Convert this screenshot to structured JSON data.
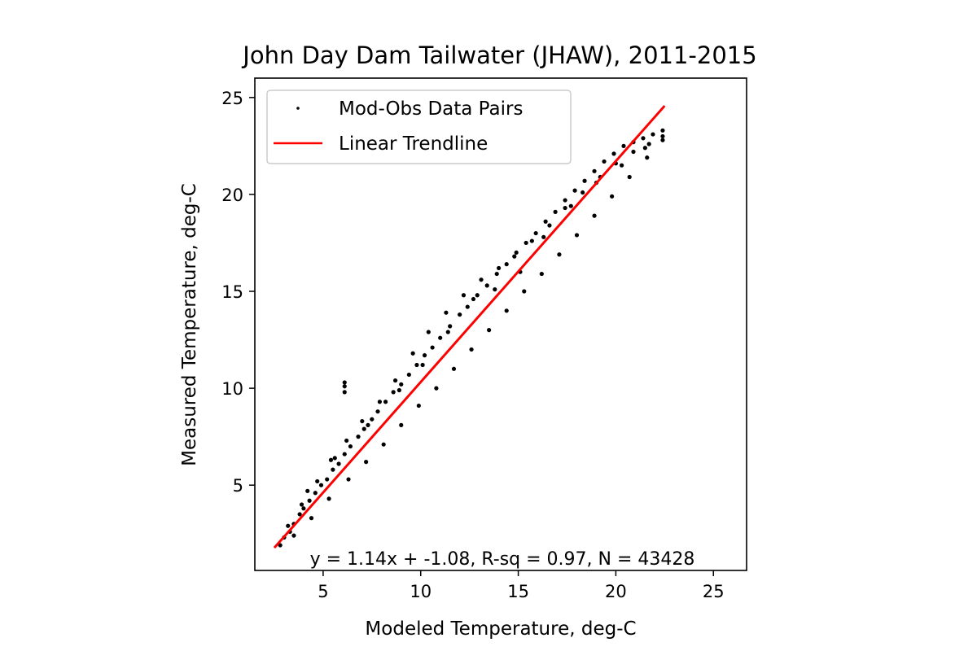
{
  "chart_data": {
    "type": "scatter",
    "title": "John Day Dam Tailwater (JHAW), 2011-2015",
    "xlabel": "Modeled Temperature, deg-C",
    "ylabel": "Measured Temperature, deg-C",
    "xlim": [
      1.5,
      26.7
    ],
    "ylim": [
      0.6,
      26.0
    ],
    "xticks": [
      5,
      10,
      15,
      20,
      25
    ],
    "yticks": [
      5,
      10,
      15,
      20,
      25
    ],
    "grid": false,
    "legend_position": "upper-left",
    "annotation": "y = 1.14x + -1.08, R-sq = 0.97, N = 43428",
    "colors": {
      "points": "#000000",
      "trendline": "#ff0000"
    },
    "series": [
      {
        "name": "Mod-Obs Data Pairs",
        "kind": "scatter",
        "color": "#000000",
        "marker": "point",
        "x": [
          2.8,
          3.0,
          3.3,
          3.5,
          3.8,
          4.0,
          4.3,
          4.6,
          4.9,
          5.2,
          5.5,
          5.8,
          6.1,
          6.4,
          6.8,
          7.1,
          7.5,
          7.8,
          8.2,
          8.6,
          9.0,
          9.4,
          9.8,
          10.2,
          10.6,
          11.0,
          11.5,
          12.0,
          12.4,
          12.9,
          13.4,
          13.9,
          14.4,
          14.9,
          15.4,
          15.9,
          16.4,
          16.9,
          17.4,
          17.9,
          18.4,
          18.9,
          19.4,
          19.9,
          20.4,
          20.9,
          21.4,
          21.9,
          22.4,
          3.2,
          3.9,
          4.7,
          5.4,
          6.2,
          7.0,
          7.9,
          8.7,
          9.6,
          10.4,
          11.3,
          12.2,
          13.1,
          14.0,
          14.8,
          15.7,
          16.6,
          17.4,
          18.3,
          19.2,
          20.0,
          20.9,
          21.7,
          22.4,
          3.5,
          4.4,
          5.3,
          6.3,
          7.2,
          8.1,
          9.0,
          9.9,
          10.8,
          11.7,
          12.6,
          13.5,
          14.4,
          15.3,
          16.2,
          17.1,
          18.0,
          18.9,
          19.8,
          20.7,
          21.6,
          22.4,
          4.2,
          5.6,
          7.3,
          8.9,
          10.1,
          11.4,
          12.7,
          13.8,
          15.1,
          16.3,
          17.7,
          19.0,
          20.3,
          21.5,
          6.1,
          6.1,
          6.1
        ],
        "y": [
          1.9,
          2.3,
          2.6,
          3.0,
          3.5,
          3.8,
          4.2,
          4.6,
          5.0,
          5.3,
          5.8,
          6.1,
          6.6,
          7.0,
          7.5,
          7.9,
          8.4,
          8.8,
          9.3,
          9.8,
          10.2,
          10.7,
          11.2,
          11.7,
          12.1,
          12.6,
          13.2,
          13.8,
          14.2,
          14.8,
          15.3,
          15.9,
          16.4,
          17.0,
          17.5,
          18.0,
          18.6,
          19.1,
          19.7,
          20.2,
          20.7,
          21.2,
          21.7,
          22.1,
          22.5,
          22.7,
          22.9,
          23.1,
          23.3,
          2.9,
          4.0,
          5.2,
          6.3,
          7.3,
          8.3,
          9.3,
          10.4,
          11.8,
          12.9,
          13.9,
          14.8,
          15.6,
          16.2,
          16.8,
          17.6,
          18.4,
          19.3,
          20.1,
          20.9,
          21.6,
          22.2,
          22.6,
          23.0,
          2.4,
          3.3,
          4.3,
          5.3,
          6.2,
          7.1,
          8.1,
          9.1,
          10.0,
          11.0,
          12.0,
          13.0,
          14.0,
          15.0,
          15.9,
          16.9,
          17.9,
          18.9,
          19.9,
          20.9,
          21.9,
          22.8,
          4.7,
          6.4,
          8.1,
          9.9,
          11.2,
          12.9,
          14.6,
          15.1,
          16.0,
          17.8,
          19.4,
          20.6,
          21.5,
          22.4,
          10.3,
          10.1,
          9.8
        ]
      },
      {
        "name": "Linear Trendline",
        "kind": "line",
        "color": "#ff0000",
        "x": [
          2.5,
          22.5
        ],
        "y": [
          1.77,
          24.57
        ]
      }
    ]
  }
}
